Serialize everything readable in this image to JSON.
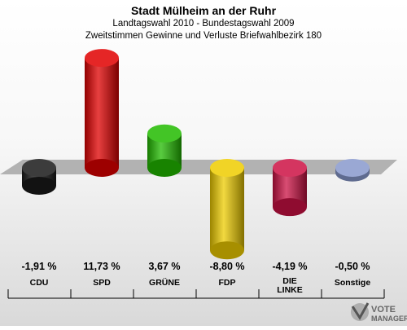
{
  "title": "Stadt Mülheim an der Ruhr",
  "subtitle1": "Landtagswahl 2010 - Bundestagswahl 2009",
  "subtitle2": "Zweitstimmen Gewinne und Verluste Briefwahlbezirk 180",
  "chart_data": {
    "type": "bar",
    "categories": [
      "CDU",
      "SPD",
      "GRÜNE",
      "FDP",
      "DIE LINKE",
      "Sonstige"
    ],
    "values": [
      -1.91,
      11.73,
      3.67,
      -8.8,
      -4.19,
      -0.5
    ],
    "value_labels": [
      "-1,91 %",
      "11,73 %",
      "3,67 %",
      "-8,80 %",
      "-4,19 %",
      "-0,50 %"
    ],
    "colors": [
      "#1a1a1a",
      "#e00000",
      "#22bb00",
      "#eecc00",
      "#cc1144",
      "#8899cc"
    ],
    "baseline": 0
  },
  "logo": {
    "line1": "VOTE",
    "line2": "MANAGER"
  }
}
